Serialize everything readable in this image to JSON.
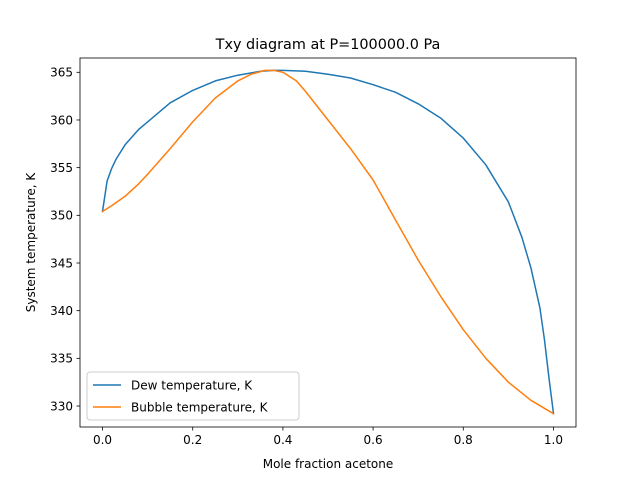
{
  "chart_data": {
    "type": "line",
    "title": "Txy diagram at P=100000.0 Pa",
    "xlabel": "Mole fraction acetone",
    "ylabel": "System temperature, K",
    "xlim": [
      -0.05,
      1.05
    ],
    "ylim": [
      327.8,
      366.5
    ],
    "x_ticks": [
      0.0,
      0.2,
      0.4,
      0.6,
      0.8,
      1.0
    ],
    "x_tick_labels": [
      "0.0",
      "0.2",
      "0.4",
      "0.6",
      "0.8",
      "1.0"
    ],
    "y_ticks": [
      330,
      335,
      340,
      345,
      350,
      355,
      360,
      365
    ],
    "y_tick_labels": [
      "330",
      "335",
      "340",
      "345",
      "350",
      "355",
      "360",
      "365"
    ],
    "grid": false,
    "legend_position": "lower-left",
    "series": [
      {
        "name": "Dew temperature, K",
        "color": "#1f77b4",
        "x": [
          0.0,
          0.01,
          0.02,
          0.03,
          0.05,
          0.08,
          0.1,
          0.15,
          0.2,
          0.25,
          0.3,
          0.35,
          0.38,
          0.4,
          0.45,
          0.5,
          0.55,
          0.6,
          0.65,
          0.7,
          0.75,
          0.8,
          0.85,
          0.9,
          0.93,
          0.95,
          0.97,
          0.98,
          0.99,
          1.0
        ],
        "y": [
          350.4,
          353.6,
          354.9,
          355.9,
          357.4,
          359.0,
          359.8,
          361.8,
          363.1,
          364.1,
          364.7,
          365.1,
          365.2,
          365.2,
          365.1,
          364.8,
          364.4,
          363.7,
          362.9,
          361.7,
          360.2,
          358.1,
          355.3,
          351.4,
          347.7,
          344.5,
          340.3,
          337.0,
          333.0,
          329.2
        ]
      },
      {
        "name": "Bubble temperature, K",
        "color": "#ff7f0e",
        "x": [
          0.0,
          0.02,
          0.05,
          0.08,
          0.1,
          0.15,
          0.2,
          0.25,
          0.3,
          0.33,
          0.36,
          0.38,
          0.4,
          0.43,
          0.45,
          0.5,
          0.55,
          0.6,
          0.65,
          0.7,
          0.75,
          0.8,
          0.85,
          0.9,
          0.95,
          1.0
        ],
        "y": [
          350.4,
          351.0,
          352.0,
          353.3,
          354.3,
          357.0,
          359.8,
          362.3,
          364.1,
          364.8,
          365.2,
          365.2,
          365.0,
          364.1,
          363.0,
          360.0,
          357.0,
          353.7,
          349.5,
          345.3,
          341.5,
          338.0,
          335.0,
          332.5,
          330.6,
          329.2
        ]
      }
    ]
  }
}
